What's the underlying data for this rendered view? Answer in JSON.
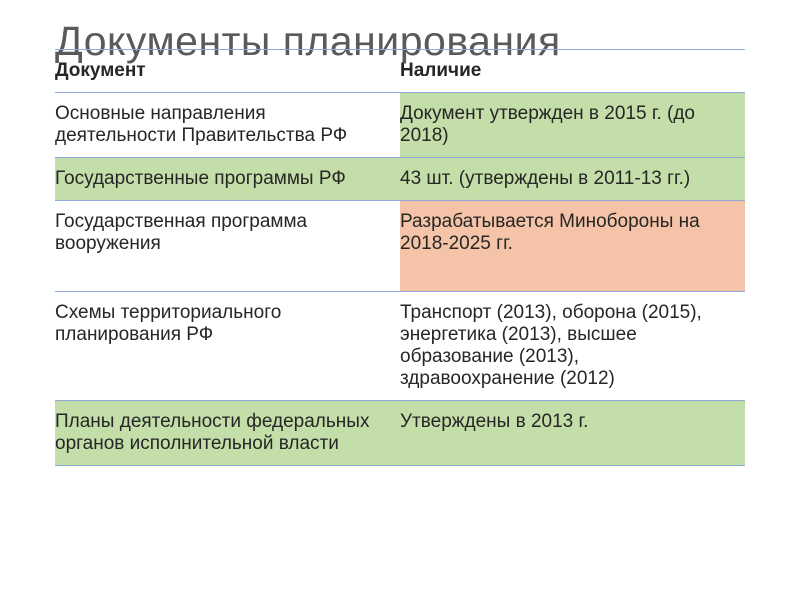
{
  "title": "Документы планирования",
  "title_fontsize": 41,
  "title_color": "#5a5a5a",
  "text_color": "#262626",
  "cell_fontsize": 19,
  "border_color": "#8faad8",
  "colors": {
    "white": "#ffffff",
    "green": "#c3dea8",
    "orange": "#f5c3a8"
  },
  "table": {
    "columns": [
      "Документ",
      "Наличие"
    ],
    "rows": [
      {
        "cells": [
          "Основные направления деятельности Правительства РФ",
          "Документ утвержден в 2015 г. (до 2018)"
        ],
        "bg": [
          "white",
          "green"
        ]
      },
      {
        "cells": [
          "Государственные программы РФ",
          "43 шт.  (утверждены в 2011-13 гг.)"
        ],
        "bg": [
          "green",
          "green"
        ]
      },
      {
        "cells": [
          "Государственная программа вооружения",
          "Разрабатывается Минобороны на 2018-2025 гг."
        ],
        "bg": [
          "white",
          "orange"
        ]
      },
      {
        "cells": [
          "Схемы территориального планирования РФ",
          "Транспорт (2013), оборона (2015), энергетика (2013), высшее образование (2013), здравоохранение (2012)"
        ],
        "bg": [
          "white",
          "white"
        ]
      },
      {
        "cells": [
          "Планы деятельности федеральных органов исполнительной власти",
          "Утверждены в 2013 г."
        ],
        "bg": [
          "green",
          "green"
        ]
      }
    ]
  }
}
